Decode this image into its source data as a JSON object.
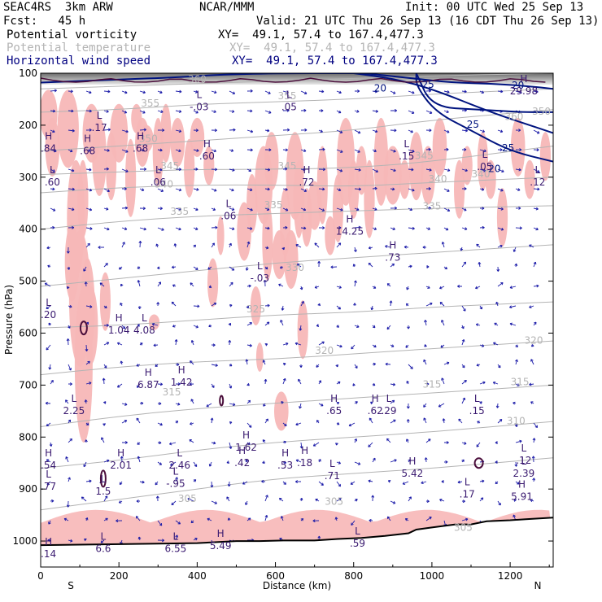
{
  "header": {
    "project": "SEAC4RS  3km ARW",
    "forecast": "Fcst:   45 h",
    "center": "NCAR/MMM",
    "init": "Init: 00 UTC Wed 25 Sep 13",
    "valid": "Valid: 21 UTC Thu 26 Sep 13 (16 CDT Thu 26 Sep 13)",
    "fields": [
      {
        "name": "Potential vorticity",
        "xy": "XY=  49.1, 57.4 to 167.4,477.3",
        "color": "#000000"
      },
      {
        "name": "Potential temperature",
        "xy": "XY=  49.1, 57.4 to 167.4,477.3",
        "color": "#b4b4b4"
      },
      {
        "name": "Horizontal wind speed",
        "xy": "XY=  49.1, 57.4 to 167.4,477.3",
        "color": "#000080"
      }
    ]
  },
  "colors": {
    "pv_shading": "#f7b7b7",
    "theta": "#b4b4b4",
    "wind_speed": "#00137f",
    "vectors": "#1a1aa8",
    "pv_contour": "#4b0f3c",
    "label_hl": "#3a1a70"
  },
  "chart_data": {
    "type": "cross-section",
    "xlabel": "Distance (km)",
    "ylabel": "Pressure (hPa)",
    "xlim": [
      0,
      1310
    ],
    "ylim": [
      1050,
      100
    ],
    "x_ticks": [
      "0",
      "200",
      "400",
      "600",
      "800",
      "1000",
      "1200"
    ],
    "y_ticks": [
      "100",
      "200",
      "300",
      "400",
      "500",
      "600",
      "700",
      "800",
      "900",
      "1000"
    ],
    "x_ends": {
      "left": "S",
      "right": "N"
    },
    "terrain": {
      "x": [
        0,
        100,
        200,
        300,
        400,
        500,
        560,
        620,
        700,
        760,
        820,
        880,
        940,
        960,
        1000,
        1060,
        1100,
        1140,
        1200,
        1240,
        1310
      ],
      "p": [
        1008,
        1007,
        1006,
        1005,
        1004,
        1000,
        1000,
        999,
        999,
        996,
        994,
        990,
        985,
        978,
        974,
        968,
        968,
        962,
        960,
        958,
        955
      ]
    },
    "theta_contours": [
      {
        "label": "305",
        "x": [
          0,
          200,
          400,
          600,
          800,
          1000,
          1310
        ],
        "p": [
          940,
          920,
          900,
          880,
          870,
          860,
          840
        ]
      },
      {
        "label": "310",
        "x": [
          0,
          200,
          400,
          600,
          800,
          1000,
          1310
        ],
        "p": [
          860,
          845,
          825,
          810,
          800,
          790,
          770
        ]
      },
      {
        "label": "315",
        "x": [
          0,
          200,
          400,
          600,
          800,
          1000,
          1310
        ],
        "p": [
          780,
          760,
          745,
          735,
          725,
          715,
          700
        ]
      },
      {
        "label": "320",
        "x": [
          0,
          200,
          400,
          600,
          800,
          1000,
          1310
        ],
        "p": [
          680,
          665,
          655,
          650,
          640,
          630,
          615
        ]
      },
      {
        "label": "325",
        "x": [
          0,
          200,
          400,
          600,
          800,
          1000,
          1310
        ],
        "p": [
          590,
          585,
          575,
          565,
          560,
          550,
          540
        ]
      },
      {
        "label": "330",
        "x": [
          0,
          200,
          400,
          600,
          800,
          1000,
          1310
        ],
        "p": [
          510,
          495,
          480,
          465,
          455,
          445,
          430
        ]
      },
      {
        "label": "335",
        "x": [
          0,
          200,
          400,
          600,
          800,
          1000,
          1310
        ],
        "p": [
          400,
          385,
          375,
          370,
          365,
          360,
          355
        ]
      },
      {
        "label": "340",
        "x": [
          0,
          200,
          400,
          600,
          800,
          1000,
          1310
        ],
        "p": [
          330,
          320,
          315,
          315,
          318,
          310,
          300
        ]
      },
      {
        "label": "345",
        "x": [
          0,
          200,
          400,
          600,
          800,
          1000,
          1310
        ],
        "p": [
          295,
          290,
          285,
          285,
          282,
          270,
          240
        ]
      },
      {
        "label": "350",
        "x": [
          0,
          200,
          400,
          600,
          800,
          1000,
          1310
        ],
        "p": [
          250,
          240,
          230,
          220,
          210,
          190,
          170
        ]
      },
      {
        "label": "355",
        "x": [
          0,
          200,
          400,
          600,
          800,
          1000,
          1310
        ],
        "p": [
          175,
          170,
          160,
          155,
          150,
          140,
          130
        ]
      },
      {
        "label": "360",
        "x": [
          0,
          200,
          400,
          600,
          800,
          1000,
          1310
        ],
        "p": [
          130,
          125,
          120,
          115,
          110,
          105,
          100
        ]
      }
    ],
    "theta_labels": [
      {
        "text": "305",
        "x": 375,
        "p": 925
      },
      {
        "text": "305",
        "x": 750,
        "p": 930
      },
      {
        "text": "305",
        "x": 1080,
        "p": 980
      },
      {
        "text": "310",
        "x": 1215,
        "p": 775
      },
      {
        "text": "315",
        "x": 335,
        "p": 720
      },
      {
        "text": "315",
        "x": 1000,
        "p": 705
      },
      {
        "text": "315",
        "x": 1225,
        "p": 700
      },
      {
        "text": "320",
        "x": 725,
        "p": 640
      },
      {
        "text": "320",
        "x": 1260,
        "p": 620
      },
      {
        "text": "325",
        "x": 550,
        "p": 560
      },
      {
        "text": "330",
        "x": 650,
        "p": 480
      },
      {
        "text": "335",
        "x": 355,
        "p": 372
      },
      {
        "text": "335",
        "x": 595,
        "p": 360
      },
      {
        "text": "335",
        "x": 1000,
        "p": 362
      },
      {
        "text": "340",
        "x": 315,
        "p": 320
      },
      {
        "text": "340",
        "x": 1015,
        "p": 310
      },
      {
        "text": "340",
        "x": 1125,
        "p": 300
      },
      {
        "text": "345",
        "x": 330,
        "p": 285
      },
      {
        "text": "345",
        "x": 630,
        "p": 285
      },
      {
        "text": "345",
        "x": 980,
        "p": 265
      },
      {
        "text": "350",
        "x": 275,
        "p": 232
      },
      {
        "text": "350",
        "x": 1280,
        "p": 180
      },
      {
        "text": "355",
        "x": 280,
        "p": 164
      },
      {
        "text": "355",
        "x": 630,
        "p": 150
      },
      {
        "text": "360",
        "x": 400,
        "p": 118
      },
      {
        "text": "360",
        "x": 1210,
        "p": 190
      }
    ],
    "wind_speed_contours": [
      {
        "label": "20",
        "x": [
          0,
          200,
          350,
          450,
          600,
          800
        ],
        "p": [
          118,
          112,
          108,
          103,
          100,
          100
        ]
      },
      {
        "label": "20",
        "x": [
          800,
          900,
          1000,
          1150,
          1250,
          1310
        ],
        "p": [
          100,
          110,
          130,
          175,
          200,
          215
        ]
      },
      {
        "label": "20",
        "x": [
          1310,
          1250,
          1150,
          1050,
          950,
          830,
          800
        ],
        "p": [
          130,
          125,
          120,
          118,
          110,
          100,
          100
        ]
      },
      {
        "label": "25",
        "x": [
          960,
          960,
          1010,
          1100,
          1200,
          1310
        ],
        "p": [
          100,
          125,
          175,
          210,
          250,
          270
        ]
      },
      {
        "label": "25",
        "x": [
          1310,
          1230,
          1120,
          1000,
          960
        ],
        "p": [
          175,
          175,
          170,
          165,
          100
        ]
      }
    ],
    "wind_speed_labels": [
      {
        "text": "20",
        "x": 868,
        "p": 135
      },
      {
        "text": "25",
        "x": 990,
        "p": 128
      },
      {
        "text": "25",
        "x": 1105,
        "p": 205
      },
      {
        "text": "25",
        "x": 1195,
        "p": 250
      },
      {
        "text": "20",
        "x": 1160,
        "p": 290
      },
      {
        "text": "20",
        "x": 1220,
        "p": 130
      }
    ],
    "pv_extrema": [
      {
        "type": "H",
        "value": ".84",
        "x": 20,
        "p": 240
      },
      {
        "type": "L",
        "value": ".60",
        "x": 30,
        "p": 305
      },
      {
        "type": "H",
        "value": ".68",
        "x": 120,
        "p": 245
      },
      {
        "type": "L",
        "value": ".17",
        "x": 150,
        "p": 200
      },
      {
        "type": "H",
        "value": ".68",
        "x": 255,
        "p": 240
      },
      {
        "type": "L",
        "value": ".06",
        "x": 300,
        "p": 305
      },
      {
        "type": "L",
        "value": "-.03",
        "x": 405,
        "p": 160
      },
      {
        "type": "H",
        "value": ".60",
        "x": 425,
        "p": 255
      },
      {
        "type": "L",
        "value": ".06",
        "x": 480,
        "p": 370
      },
      {
        "type": "L",
        "value": ".05",
        "x": 635,
        "p": 160
      },
      {
        "type": "H",
        "value": ".72",
        "x": 680,
        "p": 305
      },
      {
        "type": "H",
        "value": "14.25",
        "x": 790,
        "p": 400
      },
      {
        "type": "H",
        "value": ".73",
        "x": 900,
        "p": 450
      },
      {
        "type": "L",
        "value": "-.03",
        "x": 560,
        "p": 490
      },
      {
        "type": "L",
        "value": ".15",
        "x": 935,
        "p": 255
      },
      {
        "type": "L",
        "value": ".05",
        "x": 1135,
        "p": 275
      },
      {
        "type": "L",
        "value": ".12",
        "x": 1270,
        "p": 305
      },
      {
        "type": "H",
        "value": "29.98",
        "x": 1235,
        "p": 130
      },
      {
        "type": "L",
        "value": ".20",
        "x": 20,
        "p": 560
      },
      {
        "type": "H",
        "value": "1.04",
        "x": 200,
        "p": 590
      },
      {
        "type": "L",
        "value": "4.08",
        "x": 265,
        "p": 590
      },
      {
        "type": "H",
        "value": "6.87",
        "x": 275,
        "p": 695
      },
      {
        "type": "H",
        "value": "1.42",
        "x": 360,
        "p": 690
      },
      {
        "type": "L",
        "value": "2.25",
        "x": 85,
        "p": 745
      },
      {
        "type": "H",
        "value": ".65",
        "x": 750,
        "p": 745
      },
      {
        "type": "H",
        "value": ".62",
        "x": 855,
        "p": 745
      },
      {
        "type": "L",
        "value": ".29",
        "x": 890,
        "p": 745
      },
      {
        "type": "L",
        "value": ".15",
        "x": 1115,
        "p": 745
      },
      {
        "type": "H",
        "value": "1.62",
        "x": 525,
        "p": 815
      },
      {
        "type": "H",
        "value": ".42",
        "x": 515,
        "p": 845
      },
      {
        "type": "H",
        "value": ".53",
        "x": 625,
        "p": 850
      },
      {
        "type": "H",
        "value": ".18",
        "x": 675,
        "p": 845
      },
      {
        "type": "L",
        "value": ".71",
        "x": 745,
        "p": 870
      },
      {
        "type": "H",
        "value": "5.42",
        "x": 950,
        "p": 865
      },
      {
        "type": "L",
        "value": ".12",
        "x": 1235,
        "p": 840
      },
      {
        "type": "L",
        "value": "2.39",
        "x": 1235,
        "p": 865
      },
      {
        "type": "H",
        "value": ".54",
        "x": 20,
        "p": 850
      },
      {
        "type": "L",
        "value": ".77",
        "x": 20,
        "p": 890
      },
      {
        "type": "H",
        "value": "2.01",
        "x": 205,
        "p": 850
      },
      {
        "type": "L",
        "value": "2.46",
        "x": 355,
        "p": 850
      },
      {
        "type": "L",
        "value": "-.95",
        "x": 345,
        "p": 885
      },
      {
        "type": "L",
        "value": "1.5",
        "x": 160,
        "p": 900
      },
      {
        "type": "L",
        "value": ".17",
        "x": 1090,
        "p": 905
      },
      {
        "type": "H",
        "value": "5.91",
        "x": 1230,
        "p": 910
      },
      {
        "type": "L",
        "value": "6.6",
        "x": 160,
        "p": 1010
      },
      {
        "type": "L",
        "value": "6.55",
        "x": 345,
        "p": 1010
      },
      {
        "type": "H",
        "value": "5.49",
        "x": 460,
        "p": 1005
      },
      {
        "type": "L",
        "value": ".59",
        "x": 810,
        "p": 1000
      },
      {
        "type": "H",
        "value": ".14",
        "x": 20,
        "p": 1020
      }
    ]
  }
}
